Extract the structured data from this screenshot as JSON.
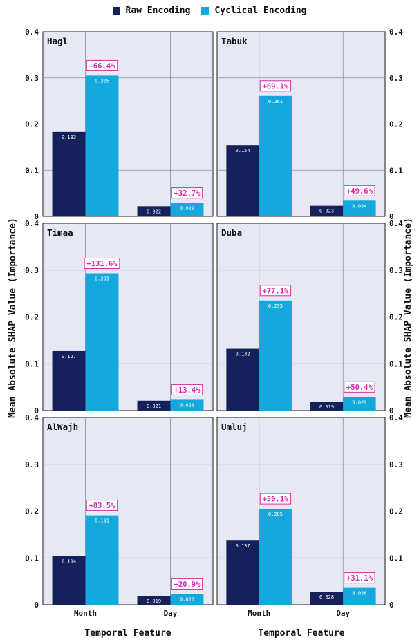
{
  "legend": {
    "raw_label": "Raw Encoding",
    "cyc_label": "Cyclical Encoding"
  },
  "colors": {
    "raw": "#16205a",
    "cyclical": "#14a8dc",
    "panel_bg": "#e6e9f4",
    "grid": "#8a8e9c",
    "annotation": "#d62aa6"
  },
  "ylabel_left": "Mean Absolute SHAP Value (Importance)",
  "ylabel_right": "Mean Absolute SHAP Value (Importance)",
  "xlabel_left": "Temporal Feature",
  "xlabel_right": "Temporal Feature",
  "yticks": [
    "0",
    "0.1",
    "0.2",
    "0.3",
    "0.4"
  ],
  "chart_data": [
    {
      "type": "bar",
      "title": "Hagl",
      "categories": [
        "Month",
        "Day"
      ],
      "ylim": [
        0,
        0.4
      ],
      "series": [
        {
          "name": "Raw Encoding",
          "values": [
            0.183,
            0.022
          ],
          "labels": [
            "0.183",
            "0.022"
          ]
        },
        {
          "name": "Cyclical Encoding",
          "values": [
            0.305,
            0.029
          ],
          "labels": [
            "0.305",
            "0.029"
          ]
        }
      ],
      "annotations": [
        "+66.4%",
        "+32.7%"
      ]
    },
    {
      "type": "bar",
      "title": "Tabuk",
      "categories": [
        "Month",
        "Day"
      ],
      "ylim": [
        0,
        0.4
      ],
      "series": [
        {
          "name": "Raw Encoding",
          "values": [
            0.154,
            0.023
          ],
          "labels": [
            "0.154",
            "0.023"
          ]
        },
        {
          "name": "Cyclical Encoding",
          "values": [
            0.261,
            0.034
          ],
          "labels": [
            "0.261",
            "0.034"
          ]
        }
      ],
      "annotations": [
        "+69.1%",
        "+49.6%"
      ]
    },
    {
      "type": "bar",
      "title": "Timaa",
      "categories": [
        "Month",
        "Day"
      ],
      "ylim": [
        0,
        0.4
      ],
      "series": [
        {
          "name": "Raw Encoding",
          "values": [
            0.127,
            0.021
          ],
          "labels": [
            "0.127",
            "0.021"
          ]
        },
        {
          "name": "Cyclical Encoding",
          "values": [
            0.293,
            0.023
          ],
          "labels": [
            "0.293",
            "0.023"
          ]
        }
      ],
      "annotations": [
        "+131.6%",
        "+13.4%"
      ]
    },
    {
      "type": "bar",
      "title": "Duba",
      "categories": [
        "Month",
        "Day"
      ],
      "ylim": [
        0,
        0.4
      ],
      "series": [
        {
          "name": "Raw Encoding",
          "values": [
            0.132,
            0.019
          ],
          "labels": [
            "0.132",
            "0.019"
          ]
        },
        {
          "name": "Cyclical Encoding",
          "values": [
            0.235,
            0.029
          ],
          "labels": [
            "0.235",
            "0.029"
          ]
        }
      ],
      "annotations": [
        "+77.1%",
        "+50.4%"
      ]
    },
    {
      "type": "bar",
      "title": "AlWajh",
      "categories": [
        "Month",
        "Day"
      ],
      "ylim": [
        0,
        0.4
      ],
      "series": [
        {
          "name": "Raw Encoding",
          "values": [
            0.104,
            0.019
          ],
          "labels": [
            "0.104",
            "0.019"
          ]
        },
        {
          "name": "Cyclical Encoding",
          "values": [
            0.191,
            0.023
          ],
          "labels": [
            "0.191",
            "0.023"
          ]
        }
      ],
      "annotations": [
        "+83.5%",
        "+20.9%"
      ]
    },
    {
      "type": "bar",
      "title": "Umluj",
      "categories": [
        "Month",
        "Day"
      ],
      "ylim": [
        0,
        0.4
      ],
      "series": [
        {
          "name": "Raw Encoding",
          "values": [
            0.137,
            0.028
          ],
          "labels": [
            "0.137",
            "0.028"
          ]
        },
        {
          "name": "Cyclical Encoding",
          "values": [
            0.205,
            0.036
          ],
          "labels": [
            "0.205",
            "0.036"
          ]
        }
      ],
      "annotations": [
        "+50.1%",
        "+31.1%"
      ]
    }
  ]
}
